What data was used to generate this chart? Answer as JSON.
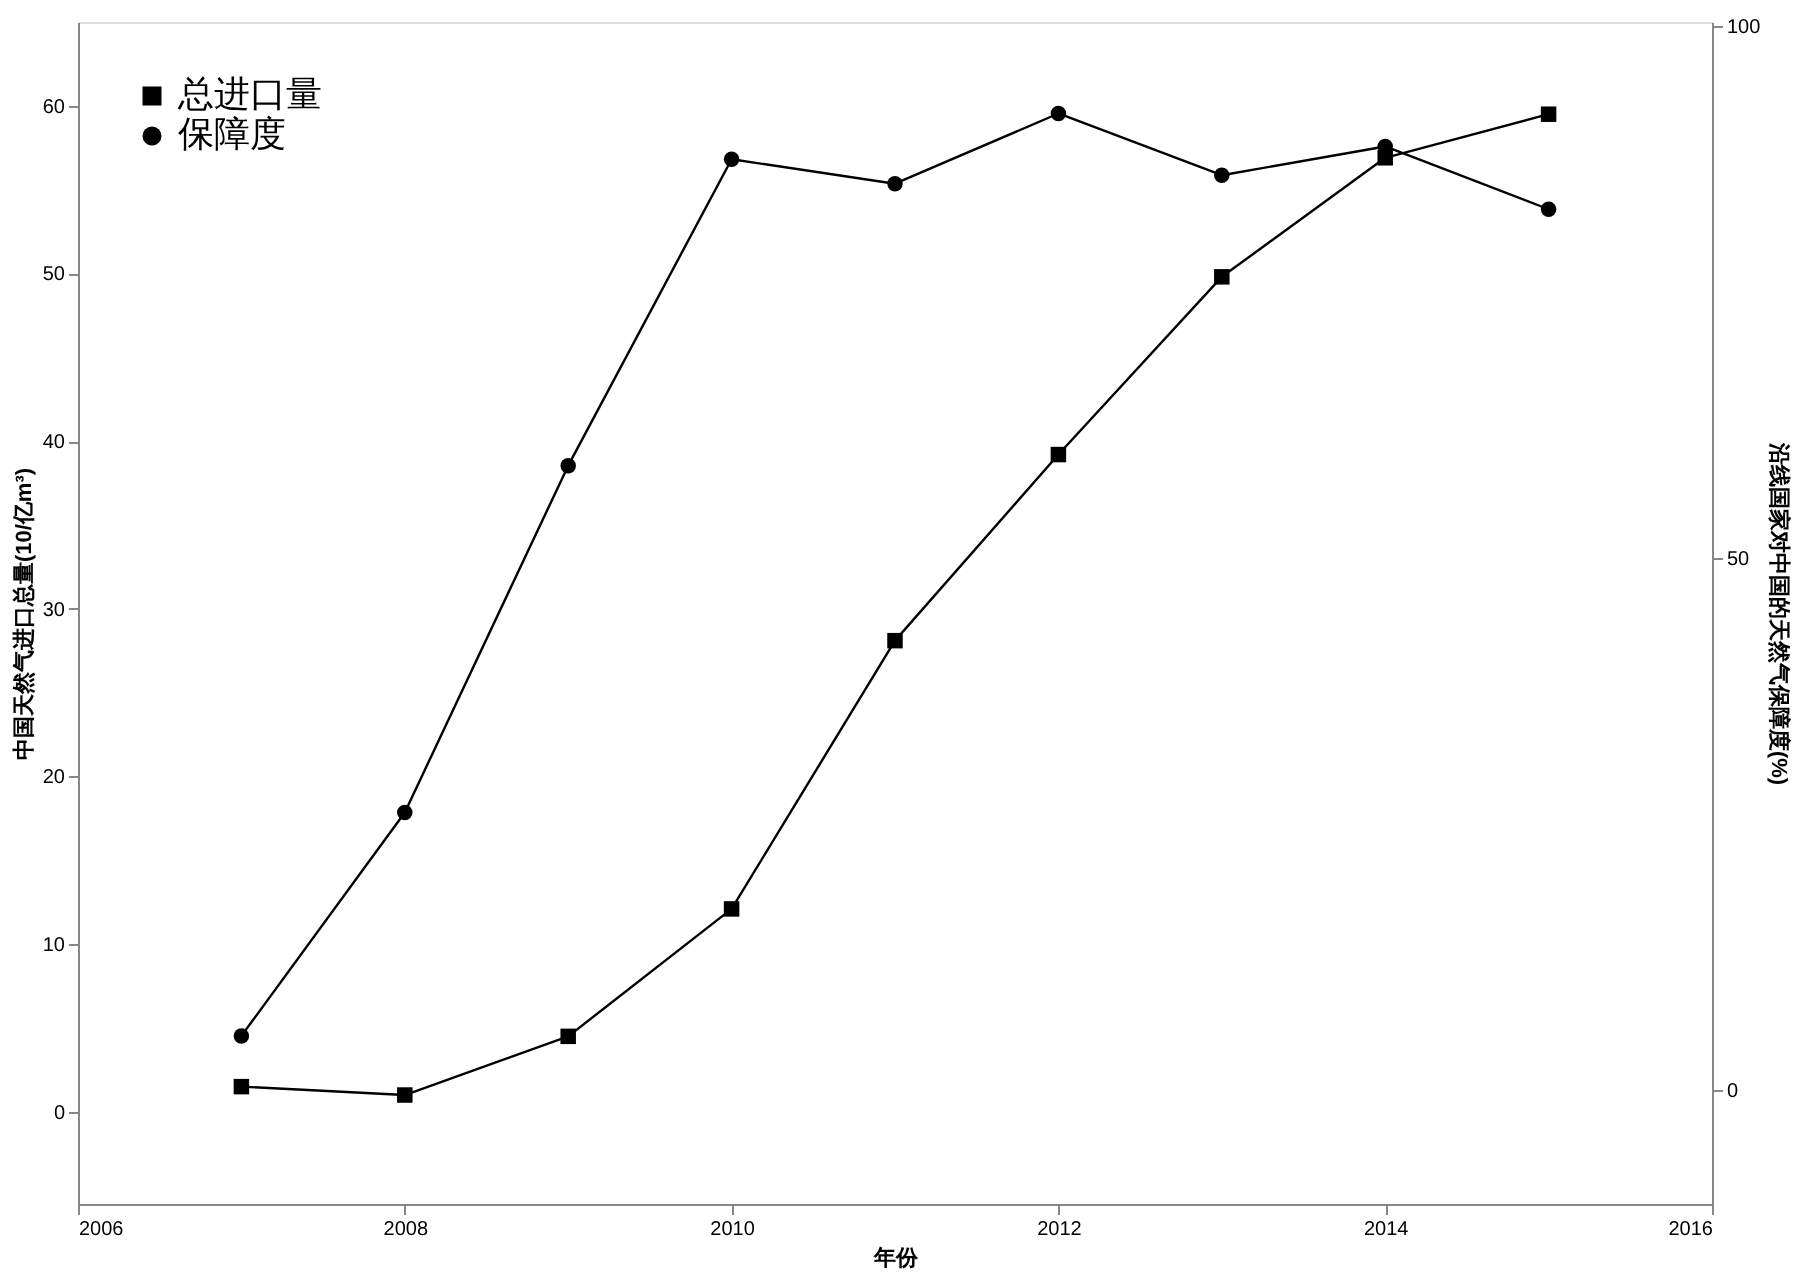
{
  "chart_data": {
    "type": "line",
    "xlabel": "年份",
    "ylabel": "中国天然气进口总量(10/亿m³)",
    "y2label": "沿线国家对中国的天然气保障度(%)",
    "x": [
      2007,
      2008,
      2009,
      2010,
      2011,
      2012,
      2013,
      2014,
      2015
    ],
    "series": [
      {
        "name": "总进口量",
        "color": "#000000",
        "marker": "square",
        "values": [
          1.5,
          1.0,
          4.5,
          12.1,
          28.1,
          39.2,
          49.8,
          56.9,
          59.5
        ]
      },
      {
        "name": "保障度",
        "color": "#000000",
        "marker": "circle",
        "axis": "y2",
        "values": [
          5.1,
          26.1,
          58.7,
          87.5,
          85.2,
          91.8,
          86.0,
          88.7,
          82.8
        ]
      }
    ],
    "xlim": [
      2006,
      2016
    ],
    "xticks": [
      2006,
      2008,
      2010,
      2012,
      2014,
      2016
    ],
    "ylim": [
      -5.5,
      65
    ],
    "yticks": [
      0,
      10,
      20,
      30,
      40,
      50,
      60
    ],
    "y2lim": [
      -10.7,
      100.4
    ],
    "y2ticks": [
      0,
      50,
      100
    ],
    "legend": "top left",
    "grid": false,
    "line_style": "solid"
  }
}
